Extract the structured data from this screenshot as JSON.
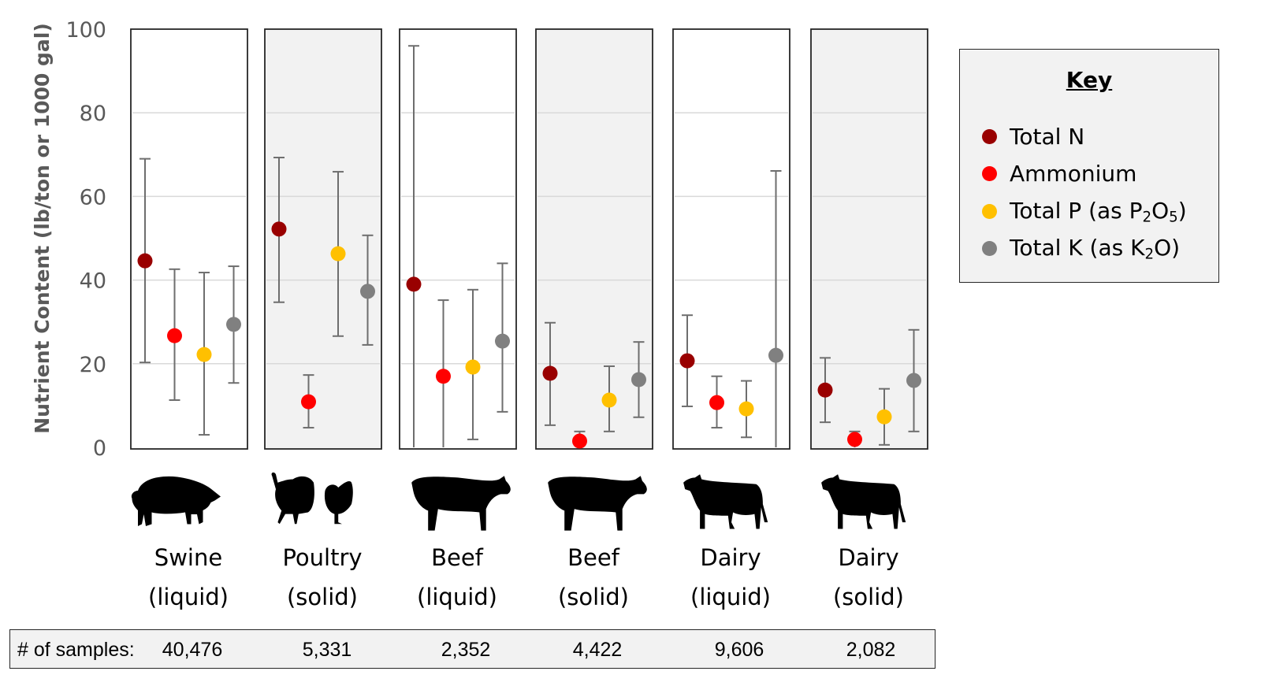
{
  "chart_data": {
    "type": "scatter",
    "subtype": "dot-with-error-bars",
    "title": "",
    "ylabel": "Nutrient Content (lb/ton or 1000 gal)",
    "xlabel": "",
    "ylim": [
      0,
      100
    ],
    "yticks": [
      0,
      20,
      40,
      60,
      80,
      100
    ],
    "grid": true,
    "legend_title": "Key",
    "legend_position": "right",
    "series": [
      {
        "name": "Total N",
        "color": "#990000"
      },
      {
        "name": "Ammonium",
        "color": "#ff0000"
      },
      {
        "name": "Total P (as P2O5)",
        "color": "#ffc000",
        "label_parts": [
          "Total P (as P",
          "2",
          "O",
          "5",
          ")"
        ]
      },
      {
        "name": "Total K (as K2O)",
        "color": "#808080",
        "label_parts": [
          "Total K (as K",
          "2",
          "O)"
        ]
      }
    ],
    "categories": [
      {
        "name": "Swine",
        "form": "(liquid)",
        "shaded": false,
        "animal": "pig-icon",
        "samples": "40,476",
        "values": [
          {
            "series": "Total N",
            "mean": 44.6,
            "low": 20.3,
            "high": 69.0
          },
          {
            "series": "Ammonium",
            "mean": 26.7,
            "low": 11.3,
            "high": 42.6
          },
          {
            "series": "Total P (as P2O5)",
            "mean": 22.2,
            "low": 3.0,
            "high": 41.8
          },
          {
            "series": "Total K (as K2O)",
            "mean": 29.4,
            "low": 15.4,
            "high": 43.3
          }
        ]
      },
      {
        "name": "Poultry",
        "form": "(solid)",
        "shaded": true,
        "animal": "poultry-icon",
        "samples": "5,331",
        "values": [
          {
            "series": "Total N",
            "mean": 52.2,
            "low": 34.7,
            "high": 69.3
          },
          {
            "series": "Ammonium",
            "mean": 10.9,
            "low": 4.7,
            "high": 17.3
          },
          {
            "series": "Total P (as P2O5)",
            "mean": 46.3,
            "low": 26.6,
            "high": 65.9
          },
          {
            "series": "Total K (as K2O)",
            "mean": 37.3,
            "low": 24.5,
            "high": 50.7
          }
        ]
      },
      {
        "name": "Beef",
        "form": "(liquid)",
        "shaded": false,
        "animal": "beef-cow-icon",
        "samples": "2,352",
        "values": [
          {
            "series": "Total N",
            "mean": 39.0,
            "low": 0,
            "high": 96.0
          },
          {
            "series": "Ammonium",
            "mean": 17.0,
            "low": 0,
            "high": 35.2
          },
          {
            "series": "Total P (as P2O5)",
            "mean": 19.2,
            "low": 1.9,
            "high": 37.7
          },
          {
            "series": "Total K (as K2O)",
            "mean": 25.4,
            "low": 8.5,
            "high": 44.0
          }
        ]
      },
      {
        "name": "Beef",
        "form": "(solid)",
        "shaded": true,
        "animal": "beef-cow-icon",
        "samples": "4,422",
        "values": [
          {
            "series": "Total N",
            "mean": 17.7,
            "low": 5.3,
            "high": 29.8
          },
          {
            "series": "Ammonium",
            "mean": 1.5,
            "low": 0,
            "high": 3.8
          },
          {
            "series": "Total P (as P2O5)",
            "mean": 11.3,
            "low": 3.8,
            "high": 19.4
          },
          {
            "series": "Total K (as K2O)",
            "mean": 16.2,
            "low": 7.2,
            "high": 25.2
          }
        ]
      },
      {
        "name": "Dairy",
        "form": "(liquid)",
        "shaded": false,
        "animal": "dairy-cow-icon",
        "samples": "9,606",
        "values": [
          {
            "series": "Total N",
            "mean": 20.7,
            "low": 9.8,
            "high": 31.6
          },
          {
            "series": "Ammonium",
            "mean": 10.7,
            "low": 4.7,
            "high": 17.0
          },
          {
            "series": "Total P (as P2O5)",
            "mean": 9.2,
            "low": 2.4,
            "high": 15.9
          },
          {
            "series": "Total K (as K2O)",
            "mean": 22.0,
            "low": 0,
            "high": 66.1
          }
        ]
      },
      {
        "name": "Dairy",
        "form": "(solid)",
        "shaded": true,
        "animal": "dairy-cow-icon",
        "samples": "2,082",
        "values": [
          {
            "series": "Total N",
            "mean": 13.7,
            "low": 6.0,
            "high": 21.4
          },
          {
            "series": "Ammonium",
            "mean": 1.9,
            "low": 0,
            "high": 3.8
          },
          {
            "series": "Total P (as P2O5)",
            "mean": 7.3,
            "low": 0.6,
            "high": 14.0
          },
          {
            "series": "Total K (as K2O)",
            "mean": 16.0,
            "low": 3.8,
            "high": 28.1
          }
        ]
      }
    ]
  },
  "samples_row": {
    "label": "# of samples:",
    "values": [
      "40,476",
      "5,331",
      "2,352",
      "4,422",
      "9,606",
      "2,082"
    ]
  }
}
